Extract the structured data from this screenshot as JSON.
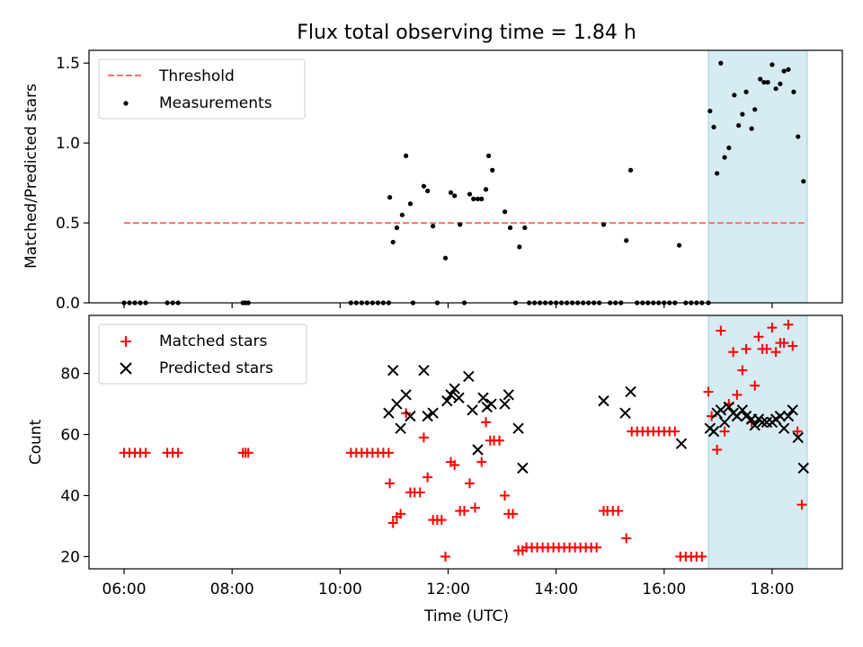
{
  "chart_data": {
    "title": "Flux total observing time = 1.84 h",
    "xlabel": "Time (UTC)",
    "x_ticks": [
      "06:00",
      "08:00",
      "10:00",
      "12:00",
      "14:00",
      "16:00",
      "18:00"
    ],
    "x_tick_hours": [
      6,
      8,
      10,
      12,
      14,
      16,
      18
    ],
    "xlim": [
      5.35,
      19.3
    ],
    "highlight_span": {
      "x": [
        16.82,
        18.65
      ],
      "color": "#add8e6"
    },
    "top": {
      "type": "scatter",
      "ylabel": "Matched/Predicted stars",
      "ylim": [
        0,
        1.58
      ],
      "yticks": [
        0.0,
        0.5,
        1.0,
        1.5
      ],
      "ytick_labels": [
        "0.0",
        "0.5",
        "1.0",
        "1.5"
      ],
      "legend": {
        "placement": "upper-left",
        "entries": [
          "Threshold",
          "Measurements"
        ]
      },
      "threshold": {
        "name": "Threshold",
        "y": 0.5,
        "x": [
          6.0,
          18.6
        ],
        "color": "#ff7070",
        "style": "dashed"
      },
      "measurements": {
        "name": "Measurements",
        "color": "#000000",
        "points": [
          [
            6.0,
            0
          ],
          [
            6.1,
            0
          ],
          [
            6.2,
            0
          ],
          [
            6.3,
            0
          ],
          [
            6.4,
            0
          ],
          [
            6.8,
            0
          ],
          [
            6.9,
            0
          ],
          [
            7.0,
            0
          ],
          [
            8.2,
            0
          ],
          [
            8.25,
            0
          ],
          [
            8.3,
            0
          ],
          [
            10.2,
            0
          ],
          [
            10.3,
            0
          ],
          [
            10.4,
            0
          ],
          [
            10.5,
            0
          ],
          [
            10.6,
            0
          ],
          [
            10.7,
            0
          ],
          [
            10.8,
            0
          ],
          [
            10.9,
            0
          ],
          [
            10.92,
            0.66
          ],
          [
            10.98,
            0.38
          ],
          [
            11.05,
            0.47
          ],
          [
            11.15,
            0.55
          ],
          [
            11.22,
            0.92
          ],
          [
            11.3,
            0.62
          ],
          [
            11.35,
            0
          ],
          [
            11.55,
            0.73
          ],
          [
            11.62,
            0.7
          ],
          [
            11.72,
            0.48
          ],
          [
            11.8,
            0
          ],
          [
            11.95,
            0.28
          ],
          [
            12.05,
            0.69
          ],
          [
            12.12,
            0.67
          ],
          [
            12.22,
            0.49
          ],
          [
            12.3,
            0
          ],
          [
            12.4,
            0.68
          ],
          [
            12.47,
            0.65
          ],
          [
            12.55,
            0.65
          ],
          [
            12.62,
            0.65
          ],
          [
            12.7,
            0.71
          ],
          [
            12.75,
            0.92
          ],
          [
            12.82,
            0.83
          ],
          [
            13.05,
            0.57
          ],
          [
            13.15,
            0.47
          ],
          [
            13.25,
            0
          ],
          [
            13.32,
            0.35
          ],
          [
            13.42,
            0.47
          ],
          [
            13.5,
            0
          ],
          [
            13.6,
            0
          ],
          [
            13.7,
            0
          ],
          [
            13.8,
            0
          ],
          [
            13.9,
            0
          ],
          [
            14.0,
            0
          ],
          [
            14.1,
            0
          ],
          [
            14.2,
            0
          ],
          [
            14.3,
            0
          ],
          [
            14.4,
            0
          ],
          [
            14.5,
            0
          ],
          [
            14.6,
            0
          ],
          [
            14.7,
            0
          ],
          [
            14.8,
            0
          ],
          [
            14.88,
            0.49
          ],
          [
            15.0,
            0
          ],
          [
            15.1,
            0
          ],
          [
            15.2,
            0
          ],
          [
            15.3,
            0.39
          ],
          [
            15.38,
            0.83
          ],
          [
            15.5,
            0
          ],
          [
            15.6,
            0
          ],
          [
            15.7,
            0
          ],
          [
            15.8,
            0
          ],
          [
            15.9,
            0
          ],
          [
            16.0,
            0
          ],
          [
            16.1,
            0
          ],
          [
            16.2,
            0
          ],
          [
            16.28,
            0.36
          ],
          [
            16.4,
            0
          ],
          [
            16.5,
            0
          ],
          [
            16.6,
            0
          ],
          [
            16.7,
            0
          ],
          [
            16.82,
            0
          ],
          [
            16.85,
            1.2
          ],
          [
            16.92,
            1.1
          ],
          [
            16.98,
            0.81
          ],
          [
            17.05,
            1.5
          ],
          [
            17.12,
            0.91
          ],
          [
            17.2,
            0.97
          ],
          [
            17.3,
            1.3
          ],
          [
            17.38,
            1.11
          ],
          [
            17.45,
            1.18
          ],
          [
            17.52,
            1.32
          ],
          [
            17.62,
            1.09
          ],
          [
            17.68,
            1.21
          ],
          [
            17.78,
            1.4
          ],
          [
            17.85,
            1.38
          ],
          [
            17.92,
            1.38
          ],
          [
            18.0,
            1.49
          ],
          [
            18.07,
            1.34
          ],
          [
            18.15,
            1.37
          ],
          [
            18.22,
            1.45
          ],
          [
            18.3,
            1.46
          ],
          [
            18.4,
            1.32
          ],
          [
            18.48,
            1.04
          ],
          [
            18.58,
            0.76
          ]
        ]
      }
    },
    "bottom": {
      "type": "scatter",
      "ylabel": "Count",
      "ylim": [
        16,
        99
      ],
      "yticks": [
        20,
        40,
        60,
        80
      ],
      "ytick_labels": [
        "20",
        "40",
        "60",
        "80"
      ],
      "legend": {
        "placement": "upper-left",
        "entries": [
          "Matched stars",
          "Predicted stars"
        ]
      },
      "matched": {
        "name": "Matched stars",
        "color": "#ff0000",
        "marker": "plus",
        "points": [
          [
            6.0,
            54
          ],
          [
            6.1,
            54
          ],
          [
            6.2,
            54
          ],
          [
            6.3,
            54
          ],
          [
            6.4,
            54
          ],
          [
            6.8,
            54
          ],
          [
            6.9,
            54
          ],
          [
            7.0,
            54
          ],
          [
            8.2,
            54
          ],
          [
            8.25,
            54
          ],
          [
            8.3,
            54
          ],
          [
            10.2,
            54
          ],
          [
            10.3,
            54
          ],
          [
            10.4,
            54
          ],
          [
            10.5,
            54
          ],
          [
            10.6,
            54
          ],
          [
            10.7,
            54
          ],
          [
            10.8,
            54
          ],
          [
            10.9,
            54
          ],
          [
            10.92,
            44
          ],
          [
            10.98,
            31
          ],
          [
            11.05,
            33
          ],
          [
            11.12,
            34
          ],
          [
            11.22,
            67
          ],
          [
            11.3,
            41
          ],
          [
            11.38,
            41
          ],
          [
            11.48,
            41
          ],
          [
            11.55,
            59
          ],
          [
            11.62,
            46
          ],
          [
            11.72,
            32
          ],
          [
            11.8,
            32
          ],
          [
            11.88,
            32
          ],
          [
            11.95,
            20
          ],
          [
            12.05,
            51
          ],
          [
            12.12,
            50
          ],
          [
            12.22,
            35
          ],
          [
            12.3,
            35
          ],
          [
            12.4,
            44
          ],
          [
            12.5,
            36
          ],
          [
            12.62,
            51
          ],
          [
            12.7,
            64
          ],
          [
            12.78,
            58
          ],
          [
            12.85,
            58
          ],
          [
            12.95,
            58
          ],
          [
            13.05,
            40
          ],
          [
            13.12,
            34
          ],
          [
            13.2,
            34
          ],
          [
            13.3,
            22
          ],
          [
            13.38,
            22
          ],
          [
            13.45,
            23
          ],
          [
            13.55,
            23
          ],
          [
            13.65,
            23
          ],
          [
            13.75,
            23
          ],
          [
            13.85,
            23
          ],
          [
            13.95,
            23
          ],
          [
            14.05,
            23
          ],
          [
            14.15,
            23
          ],
          [
            14.25,
            23
          ],
          [
            14.35,
            23
          ],
          [
            14.45,
            23
          ],
          [
            14.55,
            23
          ],
          [
            14.65,
            23
          ],
          [
            14.75,
            23
          ],
          [
            14.88,
            35
          ],
          [
            14.95,
            35
          ],
          [
            15.05,
            35
          ],
          [
            15.15,
            35
          ],
          [
            15.3,
            26
          ],
          [
            15.4,
            61
          ],
          [
            15.5,
            61
          ],
          [
            15.6,
            61
          ],
          [
            15.7,
            61
          ],
          [
            15.8,
            61
          ],
          [
            15.9,
            61
          ],
          [
            16.0,
            61
          ],
          [
            16.1,
            61
          ],
          [
            16.2,
            61
          ],
          [
            16.3,
            20
          ],
          [
            16.4,
            20
          ],
          [
            16.5,
            20
          ],
          [
            16.6,
            20
          ],
          [
            16.7,
            20
          ],
          [
            16.82,
            74
          ],
          [
            16.88,
            66
          ],
          [
            16.98,
            55
          ],
          [
            17.05,
            94
          ],
          [
            17.12,
            61
          ],
          [
            17.2,
            70
          ],
          [
            17.28,
            87
          ],
          [
            17.35,
            73
          ],
          [
            17.45,
            81
          ],
          [
            17.52,
            88
          ],
          [
            17.62,
            64
          ],
          [
            17.68,
            76
          ],
          [
            17.75,
            92
          ],
          [
            17.82,
            88
          ],
          [
            17.9,
            88
          ],
          [
            18.0,
            95
          ],
          [
            18.07,
            87
          ],
          [
            18.15,
            90
          ],
          [
            18.22,
            90
          ],
          [
            18.3,
            96
          ],
          [
            18.38,
            89
          ],
          [
            18.47,
            61
          ],
          [
            18.55,
            37
          ]
        ]
      },
      "predicted": {
        "name": "Predicted stars",
        "color": "#000000",
        "marker": "x",
        "points": [
          [
            10.9,
            67
          ],
          [
            10.98,
            81
          ],
          [
            11.05,
            70
          ],
          [
            11.12,
            62
          ],
          [
            11.22,
            73
          ],
          [
            11.3,
            66
          ],
          [
            11.55,
            81
          ],
          [
            11.62,
            66
          ],
          [
            11.72,
            67
          ],
          [
            11.98,
            71
          ],
          [
            12.05,
            73
          ],
          [
            12.12,
            75
          ],
          [
            12.2,
            72
          ],
          [
            12.38,
            79
          ],
          [
            12.45,
            68
          ],
          [
            12.55,
            55
          ],
          [
            12.65,
            72
          ],
          [
            12.72,
            69
          ],
          [
            12.8,
            70
          ],
          [
            13.05,
            70
          ],
          [
            13.12,
            73
          ],
          [
            13.3,
            62
          ],
          [
            13.38,
            49
          ],
          [
            14.88,
            71
          ],
          [
            15.28,
            67
          ],
          [
            15.38,
            74
          ],
          [
            16.32,
            57
          ],
          [
            16.85,
            62
          ],
          [
            16.92,
            61
          ],
          [
            16.98,
            67
          ],
          [
            17.05,
            68
          ],
          [
            17.12,
            64
          ],
          [
            17.2,
            69
          ],
          [
            17.28,
            67
          ],
          [
            17.35,
            66
          ],
          [
            17.45,
            68
          ],
          [
            17.52,
            66
          ],
          [
            17.62,
            65
          ],
          [
            17.68,
            63
          ],
          [
            17.75,
            65
          ],
          [
            17.82,
            64
          ],
          [
            17.9,
            64
          ],
          [
            18.0,
            64
          ],
          [
            18.07,
            65
          ],
          [
            18.15,
            66
          ],
          [
            18.22,
            62
          ],
          [
            18.3,
            66
          ],
          [
            18.38,
            68
          ],
          [
            18.48,
            59
          ],
          [
            18.58,
            49
          ]
        ]
      }
    }
  }
}
